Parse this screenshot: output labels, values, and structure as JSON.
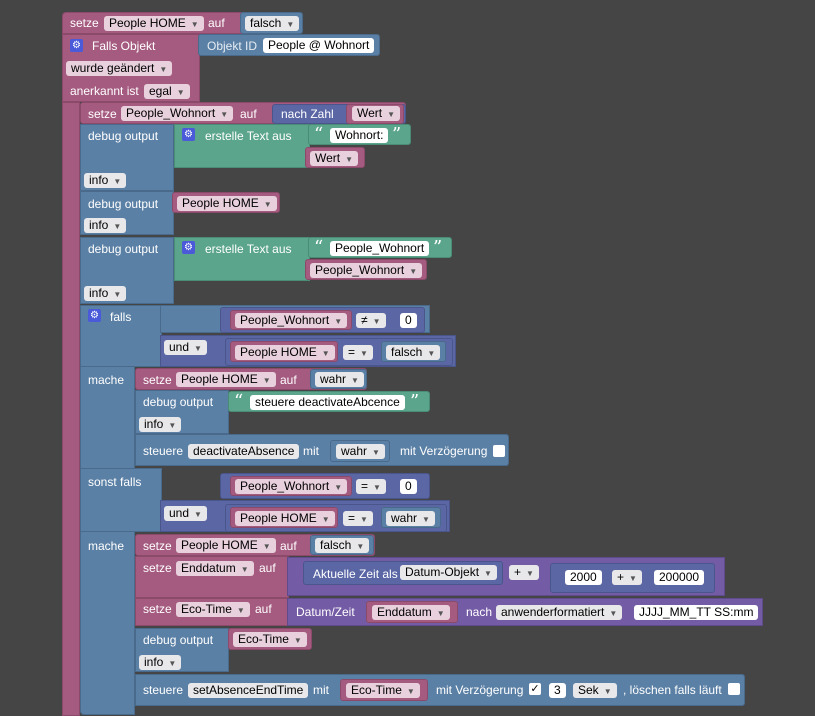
{
  "kw": {
    "setze": "setze",
    "auf": "auf",
    "falls_objekt": "Falls Objekt",
    "objekt_id": "Objekt ID",
    "anerkannt": "anerkannt ist",
    "nach_zahl": "nach Zahl",
    "debug": "debug output",
    "erstelle": "erstelle Text aus",
    "falls": "falls",
    "mache": "mache",
    "sonst_falls": "sonst falls",
    "steuere": "steuere",
    "mit": "mit",
    "mit_verz": "mit Verzögerung",
    "aktuelle_zeit": "Aktuelle Zeit als",
    "datum_zeit": "Datum/Zeit",
    "nach": "nach",
    "loeschen": ", löschen falls läuft",
    "open_quote": "“",
    "close_quote": "”",
    "gear": "⚙",
    "check": "✓"
  },
  "top": {
    "var": "People HOME",
    "value": "falsch"
  },
  "trigger": {
    "object_id": "People @ Wohnort",
    "condition": "wurde geändert",
    "ack": "egal"
  },
  "set_wohnort": {
    "var": "People_Wohnort",
    "value": "Wert"
  },
  "debug1": {
    "text": "Wohnort:",
    "var": "Wert",
    "level": "info"
  },
  "debug2": {
    "var": "People HOME",
    "level": "info"
  },
  "debug3": {
    "text": "People_Wohnort",
    "var": "People_Wohnort",
    "level": "info"
  },
  "if1": {
    "a_var": "People_Wohnort",
    "a_op": "≠",
    "a_val": "0",
    "join": "und",
    "b_var": "People HOME",
    "b_op": "=",
    "b_val": "falsch",
    "do_set_var": "People HOME",
    "do_set_val": "wahr",
    "debug_text": "steuere deactivateAbcence",
    "debug_level": "info",
    "ctrl_target": "deactivateAbsence",
    "ctrl_val": "wahr"
  },
  "if2": {
    "a_var": "People_Wohnort",
    "a_op": "=",
    "a_val": "0",
    "join": "und",
    "b_var": "People HOME",
    "b_op": "=",
    "b_val": "wahr",
    "set1_var": "People HOME",
    "set1_val": "falsch",
    "set2_var": "Enddatum",
    "set2_fmt": "Datum-Objekt",
    "set2_op": "+",
    "set2_n1": "2000",
    "set2_op2": "+",
    "set2_n2": "200000",
    "set3_var": "Eco-Time",
    "set3_date_var": "Enddatum",
    "set3_fmt": "anwenderformatiert",
    "set3_pattern": "JJJJ_MM_TT SS:mm",
    "debug_var": "Eco-Time",
    "debug_level": "info",
    "ctrl_target": "setAbsenceEndTime",
    "ctrl_val": "Eco-Time",
    "delay": "3",
    "unit": "Sek"
  }
}
